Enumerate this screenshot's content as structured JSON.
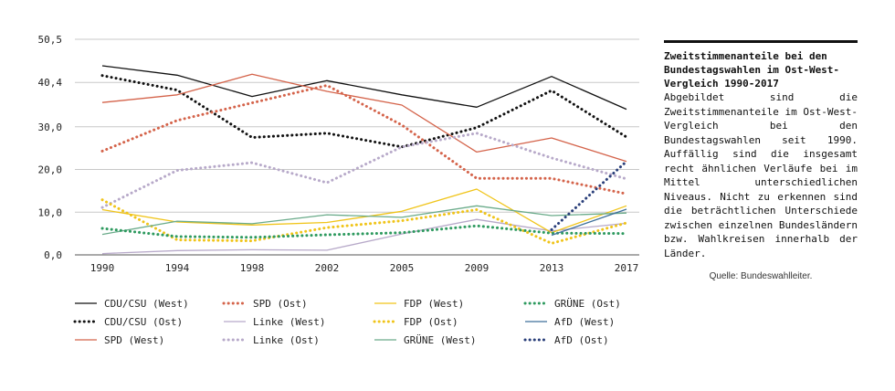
{
  "chart_data": {
    "type": "line",
    "x": [
      "1990",
      "1994",
      "1998",
      "2002",
      "2005",
      "2009",
      "2013",
      "2017"
    ],
    "ylim": [
      0,
      50.5
    ],
    "yticks": [
      "50,5",
      "40,4",
      "30,0",
      "20,0",
      "10,0",
      "0,0"
    ],
    "ytick_values": [
      50.5,
      40.4,
      30.0,
      20.0,
      10.0,
      0.0
    ],
    "grid": "horizontal",
    "series": [
      {
        "name": "CDU/CSU (West)",
        "color": "#111111",
        "style": "solid",
        "values": [
          44.3,
          42.1,
          37.1,
          40.8,
          37.5,
          34.6,
          41.8,
          34.1
        ]
      },
      {
        "name": "CDU/CSU (Ost)",
        "color": "#111111",
        "style": "dotted",
        "values": [
          42.0,
          38.6,
          27.5,
          28.5,
          25.3,
          29.8,
          38.5,
          27.6
        ]
      },
      {
        "name": "SPD (West)",
        "color": "#d4634a",
        "style": "solid",
        "values": [
          35.7,
          37.5,
          42.3,
          38.3,
          35.1,
          24.1,
          27.4,
          21.9
        ]
      },
      {
        "name": "SPD (Ost)",
        "color": "#d4634a",
        "style": "dotted",
        "values": [
          24.3,
          31.5,
          35.6,
          39.7,
          30.4,
          17.9,
          17.9,
          14.3
        ]
      },
      {
        "name": "Linke (West)",
        "color": "#b7a9c9",
        "style": "solid",
        "values": [
          0.3,
          1.0,
          1.2,
          1.1,
          4.9,
          8.3,
          5.6,
          7.4
        ]
      },
      {
        "name": "Linke (Ost)",
        "color": "#b7a9c9",
        "style": "dotted",
        "values": [
          11.1,
          19.8,
          21.6,
          16.9,
          25.3,
          28.5,
          22.7,
          17.8
        ]
      },
      {
        "name": "FDP (West)",
        "color": "#f0c419",
        "style": "solid",
        "values": [
          10.6,
          7.7,
          7.0,
          7.6,
          10.2,
          15.4,
          5.2,
          11.5
        ]
      },
      {
        "name": "FDP (Ost)",
        "color": "#f0c419",
        "style": "dotted",
        "values": [
          12.9,
          3.5,
          3.3,
          6.4,
          8.0,
          10.6,
          2.7,
          7.5
        ]
      },
      {
        "name": "GRÜNE (West)",
        "color": "#6aab8a",
        "style": "solid",
        "values": [
          4.8,
          7.9,
          7.3,
          9.4,
          8.8,
          11.5,
          9.2,
          9.8
        ]
      },
      {
        "name": "GRÜNE (Ost)",
        "color": "#2e9a5f",
        "style": "dotted",
        "values": [
          6.2,
          4.3,
          4.1,
          4.7,
          5.2,
          6.8,
          5.1,
          5.0
        ]
      },
      {
        "name": "AfD (West)",
        "color": "#3d6f9a",
        "style": "solid",
        "values": [
          null,
          null,
          null,
          null,
          null,
          null,
          4.6,
          10.7
        ]
      },
      {
        "name": "AfD (Ost)",
        "color": "#2a3f7a",
        "style": "dotted",
        "values": [
          null,
          null,
          null,
          null,
          null,
          null,
          5.9,
          21.9
        ]
      }
    ]
  },
  "sidebar": {
    "title": "Zweitstimmenanteile bei den Bundestagswahlen im Ost-West-Vergleich 1990-2017",
    "body": "Abgebildet sind die Zweitstimmenanteile im Ost-West-Vergleich bei den Bundestagswahlen seit 1990. Auffällig sind die insgesamt recht ähnlichen Verläufe bei im Mittel unterschiedlichen Niveaus. Nicht zu erkennen sind die beträchtlichen Unterschiede zwischen einzelnen Bundesländern bzw. Wahlkreisen innerhalb der Länder.",
    "source": "Quelle: Bundeswahlleiter."
  }
}
